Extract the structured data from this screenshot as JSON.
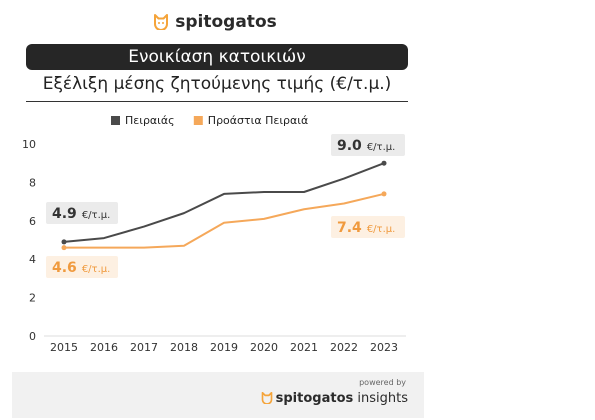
{
  "brand": {
    "logo_text": "spitogatos",
    "powered_by": "powered by",
    "footer_brand_bold": "spitogatos",
    "footer_brand_light": "insights",
    "accent_color": "#f5a43a"
  },
  "header": {
    "banner": "Ενοικίαση κατοικιών",
    "subtitle": "Εξέλιξη μέσης ζητούμενης τιμής (€/τ.μ.)"
  },
  "chart_data": {
    "type": "line",
    "x": [
      "2015",
      "2016",
      "2017",
      "2018",
      "2019",
      "2020",
      "2021",
      "2022",
      "2023"
    ],
    "series": [
      {
        "name": "Πειραιάς",
        "color": "#4a4a4a",
        "values": [
          4.9,
          5.1,
          5.7,
          6.4,
          7.4,
          7.5,
          7.5,
          8.2,
          9.0
        ]
      },
      {
        "name": "Προάστια Πειραιά",
        "color": "#f5a85a",
        "values": [
          4.6,
          4.6,
          4.6,
          4.7,
          5.9,
          6.1,
          6.6,
          6.9,
          7.4
        ]
      }
    ],
    "yticks": [
      0,
      2,
      4,
      6,
      8,
      10
    ],
    "ylim": [
      0,
      10
    ],
    "grid": false,
    "legend_position": "top-center",
    "annotations": [
      {
        "series": 0,
        "point": "first",
        "value": "4.9",
        "unit": "€/τ.μ.",
        "bg": "#ebebeb",
        "fg": "#333333"
      },
      {
        "series": 0,
        "point": "last",
        "value": "9.0",
        "unit": "€/τ.μ.",
        "bg": "#ebebeb",
        "fg": "#333333"
      },
      {
        "series": 1,
        "point": "first",
        "value": "4.6",
        "unit": "€/τ.μ.",
        "bg": "#fdf0e2",
        "fg": "#f09a3e"
      },
      {
        "series": 1,
        "point": "last",
        "value": "7.4",
        "unit": "€/τ.μ.",
        "bg": "#fdf0e2",
        "fg": "#f09a3e"
      }
    ]
  }
}
